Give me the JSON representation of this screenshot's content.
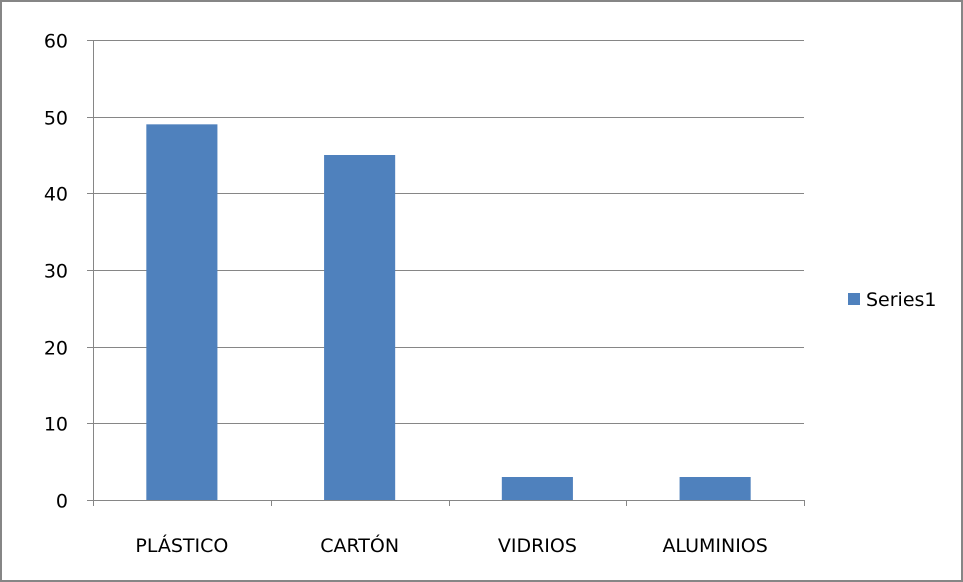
{
  "chart_data": {
    "type": "bar",
    "title": "",
    "xlabel": "",
    "ylabel": "",
    "categories": [
      "PLÁSTICO",
      "CARTÓN",
      "VIDRIOS",
      "ALUMINIOS"
    ],
    "series": [
      {
        "name": "Series1",
        "values": [
          49,
          45,
          3,
          3
        ],
        "color": "#4F81BD"
      }
    ],
    "ylim": [
      0,
      60
    ],
    "yticks": [
      0,
      10,
      20,
      30,
      40,
      50,
      60
    ],
    "grid": true,
    "legend": "right"
  },
  "colors": {
    "bar": "#4F81BD",
    "gridline": "#868686",
    "axis": "#868686",
    "frame": "#868686"
  }
}
